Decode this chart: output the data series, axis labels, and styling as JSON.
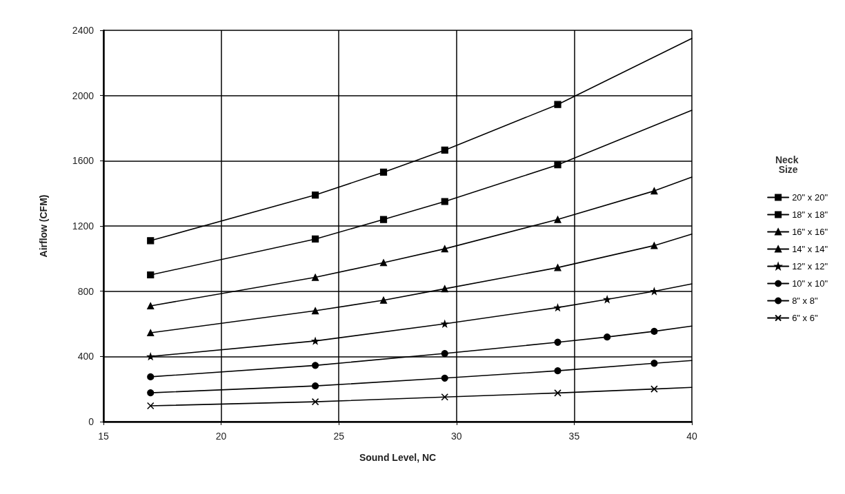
{
  "chart_data": {
    "type": "line",
    "xlabel": "Sound Level, NC",
    "ylabel": "Airflow (CFM)",
    "legend_title": "Neck Size",
    "xlim": [
      15,
      40
    ],
    "xticks": [
      15,
      20,
      25,
      30,
      35,
      40
    ],
    "ylim": [
      0,
      2400
    ],
    "yticks": [
      0,
      400,
      800,
      1200,
      1600,
      2000,
      2400
    ],
    "grid": true,
    "legend": "right",
    "line_style": "solid",
    "series": [
      {
        "name": "20\" x 20\"",
        "color": "#000000",
        "marker": "square",
        "x": [
          17,
          24,
          26.9,
          29.5,
          34.3
        ],
        "values": [
          1110,
          1390,
          1530,
          1665,
          1945
        ]
      },
      {
        "name": "18\" x 18\"",
        "color": "#000000",
        "marker": "square",
        "x": [
          17,
          24,
          26.9,
          29.5,
          34.3
        ],
        "values": [
          900,
          1120,
          1240,
          1350,
          1575
        ]
      },
      {
        "name": "16\" x 16\"",
        "color": "#000000",
        "marker": "triangle",
        "x": [
          17,
          24,
          26.9,
          29.5,
          34.3,
          38.4
        ],
        "values": [
          710,
          885,
          975,
          1060,
          1240,
          1415
        ]
      },
      {
        "name": "14\" x 14\"",
        "color": "#000000",
        "marker": "triangle",
        "x": [
          17,
          24,
          26.9,
          29.5,
          34.3,
          38.4
        ],
        "values": [
          545,
          680,
          745,
          815,
          945,
          1080
        ]
      },
      {
        "name": "12\" x 12\"",
        "color": "#000000",
        "marker": "star",
        "x": [
          17,
          24,
          29.5,
          34.3,
          36.4,
          38.4
        ],
        "values": [
          400,
          495,
          600,
          700,
          750,
          800
        ]
      },
      {
        "name": "10\" x 10\"",
        "color": "#000000",
        "marker": "circle",
        "x": [
          17,
          24,
          29.5,
          34.3,
          36.4,
          38.4
        ],
        "values": [
          275,
          345,
          418,
          487,
          519,
          554
        ]
      },
      {
        "name": "8\" x 8\"",
        "color": "#000000",
        "marker": "circle",
        "x": [
          17,
          24,
          29.5,
          34.3,
          38.4
        ],
        "values": [
          177,
          219,
          267,
          312,
          358
        ]
      },
      {
        "name": "6\" x 6\"",
        "color": "#000000",
        "marker": "cross",
        "x": [
          17,
          24,
          29.5,
          34.3,
          38.4
        ],
        "values": [
          97,
          122,
          151,
          176,
          200
        ]
      },
      {
        "color": "#000000",
        "marker": "none",
        "x": [
          34.3,
          40
        ],
        "values": [
          1945,
          2350
        ]
      },
      {
        "color": "#000000",
        "marker": "none",
        "x": [
          34.3,
          40
        ],
        "values": [
          1575,
          1910
        ]
      },
      {
        "color": "#000000",
        "marker": "none",
        "x": [
          38.4,
          40
        ],
        "values": [
          1415,
          1500
        ]
      },
      {
        "color": "#000000",
        "marker": "none",
        "x": [
          38.4,
          40
        ],
        "values": [
          1080,
          1150
        ]
      },
      {
        "color": "#000000",
        "marker": "none",
        "x": [
          38.4,
          40
        ],
        "values": [
          800,
          845
        ]
      },
      {
        "color": "#000000",
        "marker": "none",
        "x": [
          38.4,
          40
        ],
        "values": [
          554,
          586
        ]
      },
      {
        "color": "#000000",
        "marker": "none",
        "x": [
          38.4,
          40
        ],
        "values": [
          358,
          375
        ]
      },
      {
        "color": "#000000",
        "marker": "none",
        "x": [
          38.4,
          40
        ],
        "values": [
          200,
          210
        ]
      }
    ]
  }
}
